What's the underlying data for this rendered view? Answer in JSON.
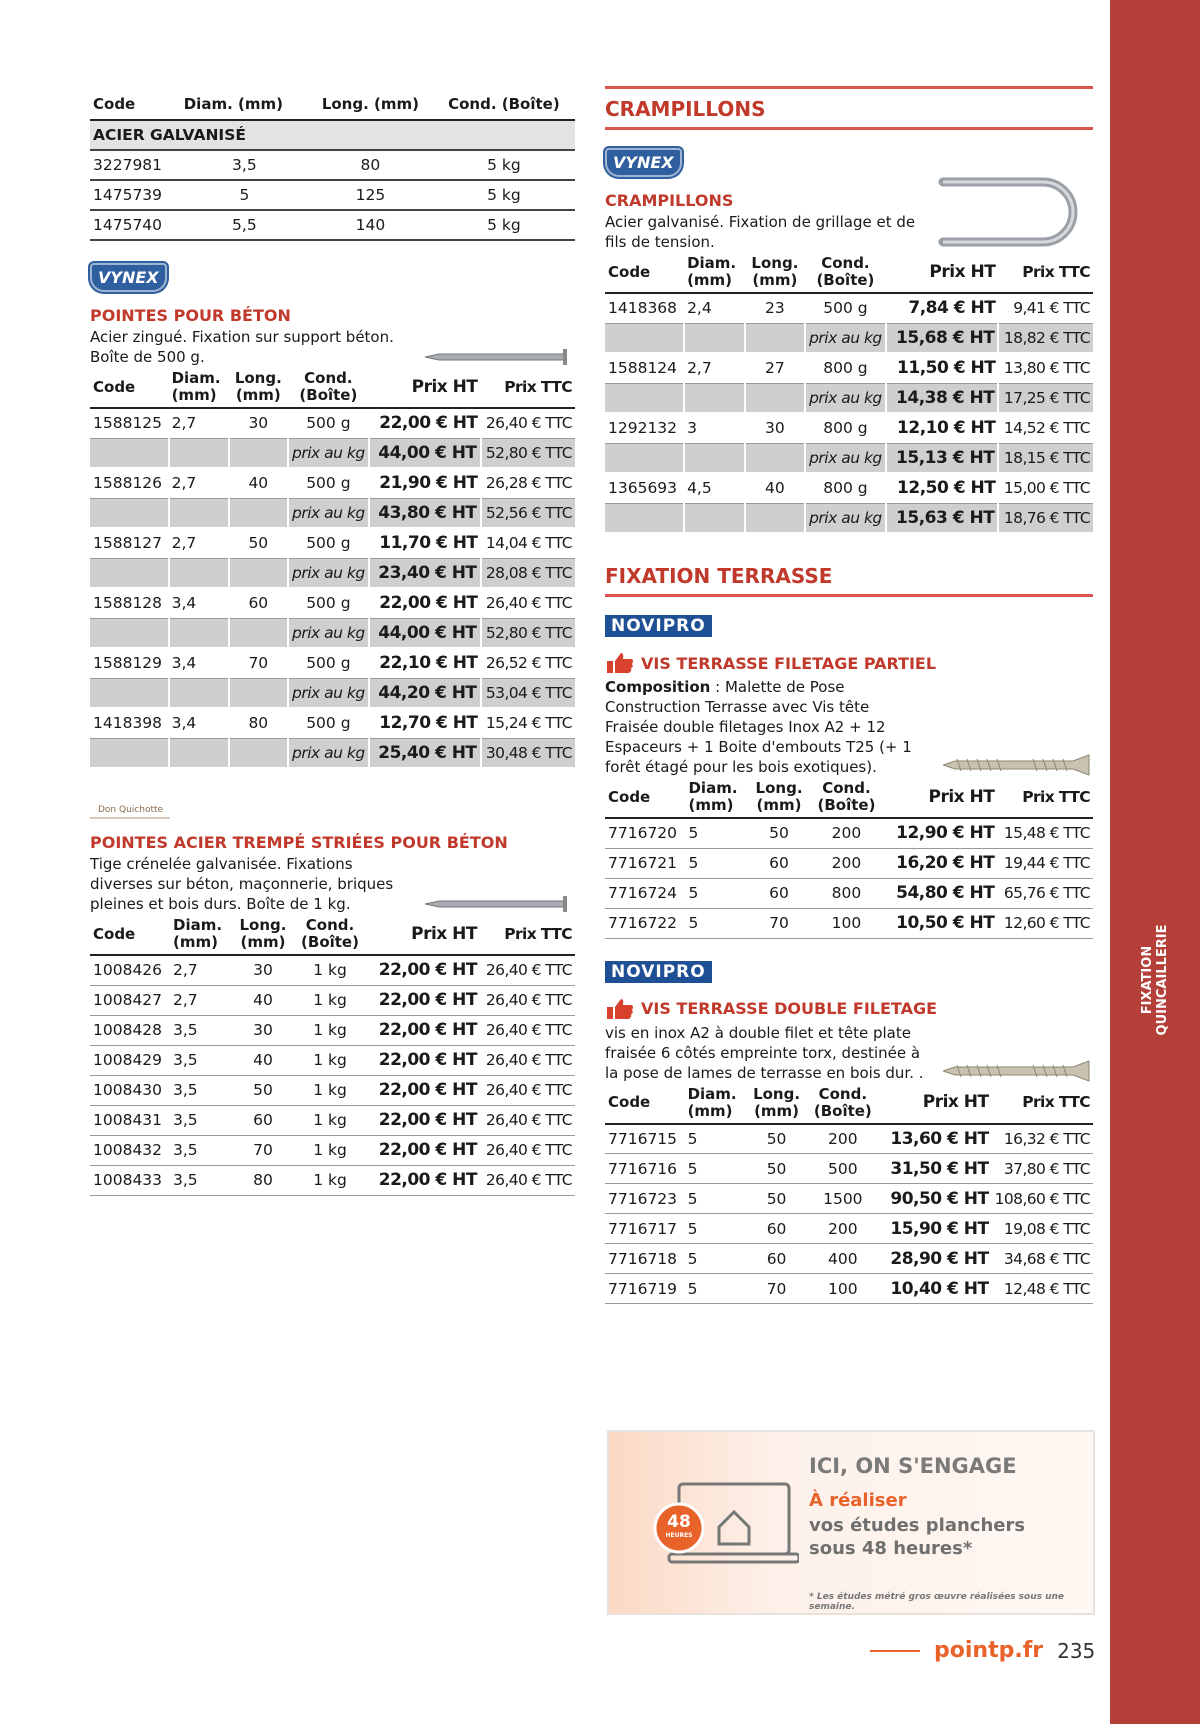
{
  "side_tab": [
    "FIXATION",
    "QUINCAILLERIE"
  ],
  "left": {
    "top_table": {
      "headers": [
        "Code",
        "Diam. (mm)",
        "Long. (mm)",
        "Cond. (Boîte)"
      ],
      "group": "ACIER GALVANISÉ",
      "rows": [
        [
          "3227981",
          "3,5",
          "80",
          "5 kg"
        ],
        [
          "1475739",
          "5",
          "125",
          "5 kg"
        ],
        [
          "1475740",
          "5,5",
          "140",
          "5 kg"
        ]
      ]
    },
    "products": [
      {
        "brand": "VYNEX",
        "title": "POINTES POUR BÉTON",
        "description": "Acier zingué. Fixation sur support béton. Boîte de 500 g.",
        "headers": [
          "Code",
          "Diam. (mm)",
          "Long. (mm)",
          "Cond. (Boîte)",
          "Prix HT",
          "Prix TTC"
        ],
        "rows": [
          {
            "cells": [
              "1588125",
              "2,7",
              "30",
              "500 g",
              "22,00 € HT",
              "26,40 € TTC"
            ],
            "per_kg": [
              "prix au kg",
              "44,00 € HT",
              "52,80 € TTC"
            ]
          },
          {
            "cells": [
              "1588126",
              "2,7",
              "40",
              "500 g",
              "21,90 € HT",
              "26,28 € TTC"
            ],
            "per_kg": [
              "prix au kg",
              "43,80 € HT",
              "52,56 € TTC"
            ]
          },
          {
            "cells": [
              "1588127",
              "2,7",
              "50",
              "500 g",
              "11,70 € HT",
              "14,04 € TTC"
            ],
            "per_kg": [
              "prix au kg",
              "23,40 € HT",
              "28,08 € TTC"
            ]
          },
          {
            "cells": [
              "1588128",
              "3,4",
              "60",
              "500 g",
              "22,00 € HT",
              "26,40 € TTC"
            ],
            "per_kg": [
              "prix au kg",
              "44,00 € HT",
              "52,80 € TTC"
            ]
          },
          {
            "cells": [
              "1588129",
              "3,4",
              "70",
              "500 g",
              "22,10 € HT",
              "26,52 € TTC"
            ],
            "per_kg": [
              "prix au kg",
              "44,20 € HT",
              "53,04 € TTC"
            ]
          },
          {
            "cells": [
              "1418398",
              "3,4",
              "80",
              "500 g",
              "12,70 € HT",
              "15,24 € TTC"
            ],
            "per_kg": [
              "prix au kg",
              "25,40 € HT",
              "30,48 € TTC"
            ]
          }
        ]
      },
      {
        "brand": "Don Quichotte",
        "title": "POINTES ACIER TREMPÉ STRIÉES POUR BÉTON",
        "description": "Tige crénelée galvanisée. Fixations diverses sur béton, maçonnerie, briques pleines et bois durs. Boîte de 1 kg.",
        "headers": [
          "Code",
          "Diam. (mm)",
          "Long. (mm)",
          "Cond. (Boîte)",
          "Prix HT",
          "Prix TTC"
        ],
        "rows": [
          {
            "cells": [
              "1008426",
              "2,7",
              "30",
              "1 kg",
              "22,00 € HT",
              "26,40 € TTC"
            ]
          },
          {
            "cells": [
              "1008427",
              "2,7",
              "40",
              "1 kg",
              "22,00 € HT",
              "26,40 € TTC"
            ]
          },
          {
            "cells": [
              "1008428",
              "3,5",
              "30",
              "1 kg",
              "22,00 € HT",
              "26,40 € TTC"
            ]
          },
          {
            "cells": [
              "1008429",
              "3,5",
              "40",
              "1 kg",
              "22,00 € HT",
              "26,40 € TTC"
            ]
          },
          {
            "cells": [
              "1008430",
              "3,5",
              "50",
              "1 kg",
              "22,00 € HT",
              "26,40 € TTC"
            ]
          },
          {
            "cells": [
              "1008431",
              "3,5",
              "60",
              "1 kg",
              "22,00 € HT",
              "26,40 € TTC"
            ]
          },
          {
            "cells": [
              "1008432",
              "3,5",
              "70",
              "1 kg",
              "22,00 € HT",
              "26,40 € TTC"
            ]
          },
          {
            "cells": [
              "1008433",
              "3,5",
              "80",
              "1 kg",
              "22,00 € HT",
              "26,40 € TTC"
            ]
          }
        ]
      }
    ]
  },
  "right": {
    "sections": [
      {
        "heading": "CRAMPILLONS",
        "products": [
          {
            "brand": "VYNEX",
            "title": "CRAMPILLONS",
            "description": "Acier galvanisé. Fixation de grillage et de fils de tension.",
            "headers": [
              "Code",
              "Diam. (mm)",
              "Long. (mm)",
              "Cond. (Boîte)",
              "Prix HT",
              "Prix TTC"
            ],
            "rows": [
              {
                "cells": [
                  "1418368",
                  "2,4",
                  "23",
                  "500 g",
                  "7,84 € HT",
                  "9,41 € TTC"
                ],
                "per_kg": [
                  "prix au kg",
                  "15,68 € HT",
                  "18,82 € TTC"
                ]
              },
              {
                "cells": [
                  "1588124",
                  "2,7",
                  "27",
                  "800 g",
                  "11,50 € HT",
                  "13,80 € TTC"
                ],
                "per_kg": [
                  "prix au kg",
                  "14,38 € HT",
                  "17,25 € TTC"
                ]
              },
              {
                "cells": [
                  "1292132",
                  "3",
                  "30",
                  "800 g",
                  "12,10 € HT",
                  "14,52 € TTC"
                ],
                "per_kg": [
                  "prix au kg",
                  "15,13 € HT",
                  "18,15 € TTC"
                ]
              },
              {
                "cells": [
                  "1365693",
                  "4,5",
                  "40",
                  "800 g",
                  "12,50 € HT",
                  "15,00 € TTC"
                ],
                "per_kg": [
                  "prix au kg",
                  "15,63 € HT",
                  "18,76 € TTC"
                ]
              }
            ]
          }
        ]
      },
      {
        "heading": "FIXATION TERRASSE",
        "products": [
          {
            "brand": "NOVIPRO",
            "title": "VIS TERRASSE FILETAGE PARTIEL",
            "description_label": "Composition",
            "description": " : Malette de Pose Construction Terrasse avec Vis tête Fraisée double filetages Inox A2 + 12 Espaceurs + 1 Boite d'embouts T25 (+ 1 forêt étagé pour les bois exotiques).",
            "headers": [
              "Code",
              "Diam. (mm)",
              "Long. (mm)",
              "Cond. (Boîte)",
              "Prix HT",
              "Prix TTC"
            ],
            "rows": [
              {
                "cells": [
                  "7716720",
                  "5",
                  "50",
                  "200",
                  "12,90 € HT",
                  "15,48 € TTC"
                ]
              },
              {
                "cells": [
                  "7716721",
                  "5",
                  "60",
                  "200",
                  "16,20 € HT",
                  "19,44 € TTC"
                ]
              },
              {
                "cells": [
                  "7716724",
                  "5",
                  "60",
                  "800",
                  "54,80 € HT",
                  "65,76 € TTC"
                ]
              },
              {
                "cells": [
                  "7716722",
                  "5",
                  "70",
                  "100",
                  "10,50 € HT",
                  "12,60 € TTC"
                ]
              }
            ]
          },
          {
            "brand": "NOVIPRO",
            "title": "VIS TERRASSE DOUBLE FILETAGE",
            "description": "vis en inox A2 à double filet et tête plate fraisée 6 côtés empreinte torx, destinée à la pose de lames de terrasse en bois dur. .",
            "headers": [
              "Code",
              "Diam. (mm)",
              "Long. (mm)",
              "Cond. (Boîte)",
              "Prix HT",
              "Prix TTC"
            ],
            "rows": [
              {
                "cells": [
                  "7716715",
                  "5",
                  "50",
                  "200",
                  "13,60 € HT",
                  "16,32 € TTC"
                ]
              },
              {
                "cells": [
                  "7716716",
                  "5",
                  "50",
                  "500",
                  "31,50 € HT",
                  "37,80 € TTC"
                ]
              },
              {
                "cells": [
                  "7716723",
                  "5",
                  "50",
                  "1500",
                  "90,50 € HT",
                  "108,60 € TTC"
                ]
              },
              {
                "cells": [
                  "7716717",
                  "5",
                  "60",
                  "200",
                  "15,90 € HT",
                  "19,08 € TTC"
                ]
              },
              {
                "cells": [
                  "7716718",
                  "5",
                  "60",
                  "400",
                  "28,90 € HT",
                  "34,68 € TTC"
                ]
              },
              {
                "cells": [
                  "7716719",
                  "5",
                  "70",
                  "100",
                  "10,40 € HT",
                  "12,48 € TTC"
                ]
              }
            ]
          }
        ]
      }
    ]
  },
  "ad": {
    "headline": "ICI, ON S'ENGAGE",
    "accent": "À réaliser",
    "text": "vos études planchers sous 48 heures*",
    "badge_number": "48",
    "badge_unit": "HEURES",
    "footnote": "* Les études métré gros œuvre réalisées sous une semaine."
  },
  "footer": {
    "site": "pointp.fr",
    "page": "235"
  }
}
